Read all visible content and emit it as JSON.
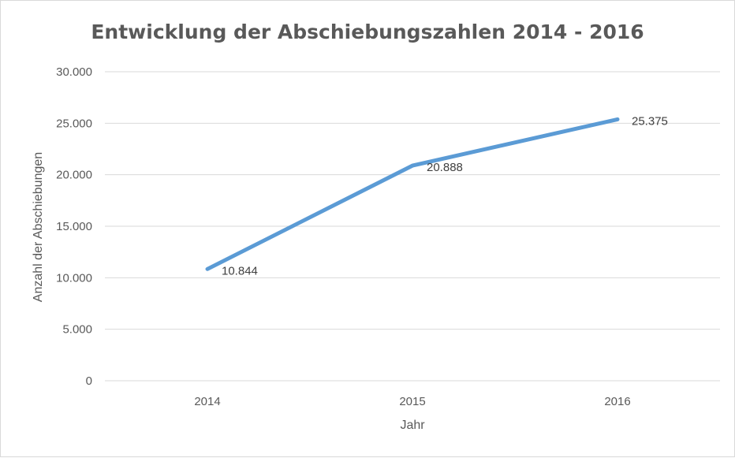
{
  "chart_data": {
    "type": "line",
    "title": "Entwicklung der Abschiebungszahlen 2014 - 2016",
    "xlabel": "Jahr",
    "ylabel": "Anzahl der Abschiebungen",
    "categories": [
      "2014",
      "2015",
      "2016"
    ],
    "series": [
      {
        "values": [
          10844,
          20888,
          25375
        ],
        "labels": [
          "10.844",
          "20.888",
          "25.375"
        ],
        "color": "#5b9bd5"
      }
    ],
    "ylim": [
      0,
      30000
    ],
    "yticks": [
      0,
      5000,
      10000,
      15000,
      20000,
      25000,
      30000
    ],
    "ytick_labels": [
      "0",
      "5.000",
      "10.000",
      "15.000",
      "20.000",
      "25.000",
      "30.000"
    ],
    "grid": true,
    "legend": "none"
  }
}
